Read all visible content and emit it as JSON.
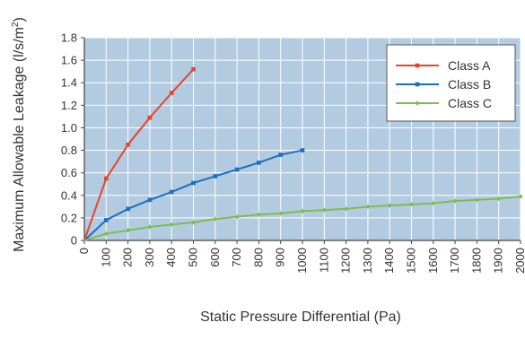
{
  "chart_data": {
    "type": "line",
    "title": "",
    "xlabel": "Static Pressure Differential (Pa)",
    "ylabel": "Maximum Allowable Leakage (l/s/m",
    "ylabel_superscript": "2",
    "ylabel_close": ")",
    "xlim": [
      0,
      2000
    ],
    "ylim": [
      0,
      1.8
    ],
    "x_ticks": [
      0,
      100,
      200,
      300,
      400,
      500,
      600,
      700,
      800,
      900,
      1000,
      1100,
      1200,
      1300,
      1400,
      1500,
      1600,
      1700,
      1800,
      1900,
      2000
    ],
    "y_ticks": [
      0,
      0.2,
      0.4,
      0.6,
      0.8,
      1.0,
      1.2,
      1.4,
      1.6,
      1.8
    ],
    "y_tick_labels": [
      "0",
      "0.2",
      "0.4",
      "0.6",
      "0.8",
      "1.0",
      "1.2",
      "1.4",
      "1.6",
      "1.8"
    ],
    "grid": true,
    "legend_position": "top-right",
    "colors": {
      "plot_background": "#b3cbe0",
      "grid": "#ffffff",
      "axis": "#444444"
    },
    "series": [
      {
        "name": "Class A",
        "color": "#e8432d",
        "marker": "square",
        "x": [
          0,
          100,
          200,
          300,
          400,
          500
        ],
        "y": [
          0,
          0.55,
          0.85,
          1.09,
          1.31,
          1.52
        ]
      },
      {
        "name": "Class B",
        "color": "#1a6fc2",
        "marker": "square",
        "x": [
          0,
          100,
          200,
          300,
          400,
          500,
          600,
          700,
          800,
          900,
          1000
        ],
        "y": [
          0,
          0.18,
          0.28,
          0.36,
          0.43,
          0.51,
          0.57,
          0.63,
          0.69,
          0.76,
          0.8
        ]
      },
      {
        "name": "Class C",
        "color": "#7cbd4f",
        "marker": "diamond",
        "x": [
          0,
          100,
          200,
          300,
          400,
          500,
          600,
          700,
          800,
          900,
          1000,
          1100,
          1200,
          1300,
          1400,
          1500,
          1600,
          1700,
          1800,
          1900,
          2000
        ],
        "y": [
          0,
          0.06,
          0.09,
          0.12,
          0.14,
          0.16,
          0.19,
          0.21,
          0.23,
          0.24,
          0.26,
          0.27,
          0.28,
          0.3,
          0.31,
          0.32,
          0.33,
          0.35,
          0.36,
          0.37,
          0.39
        ]
      }
    ]
  }
}
